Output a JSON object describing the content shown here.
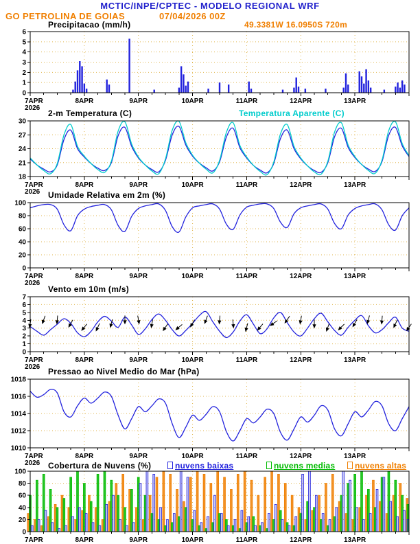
{
  "header": {
    "title": "MCTIC/INPE/CPTEC - MODELO REGIONAL WRF",
    "station": "GO PETROLINA DE GOIAS",
    "run": "07/04/2026 00Z",
    "location": "49.3381W 16.0950S 720m"
  },
  "colors": {
    "blue": "#2222dd",
    "cyan": "#00cccc",
    "green": "#00bb00",
    "orange": "#f07f00",
    "grid": "#e0b64f",
    "text_blue": "#2222cc",
    "text_orange": "#f07f00"
  },
  "x_axis": {
    "range_hours": [
      0,
      168
    ],
    "minor_tick_hours": 6,
    "ticks": [
      {
        "h": 0,
        "label": "7APR",
        "sub": "2026"
      },
      {
        "h": 24,
        "label": "8APR"
      },
      {
        "h": 48,
        "label": "9APR"
      },
      {
        "h": 72,
        "label": "10APR"
      },
      {
        "h": 96,
        "label": "11APR"
      },
      {
        "h": 120,
        "label": "12APR"
      },
      {
        "h": 144,
        "label": "13APR"
      }
    ]
  },
  "chart_data": [
    {
      "id": "precip",
      "type": "bar",
      "title": "Precipitacao (mm/h)",
      "ylim": [
        0,
        6
      ],
      "yticks": [
        0,
        1,
        2,
        3,
        4,
        5,
        6
      ],
      "bars": [
        [
          19,
          0.3
        ],
        [
          20,
          1.1
        ],
        [
          21,
          2.2
        ],
        [
          22,
          3.1
        ],
        [
          23,
          2.6
        ],
        [
          24,
          0.9
        ],
        [
          25,
          0.4
        ],
        [
          34,
          1.3
        ],
        [
          35,
          0.8
        ],
        [
          44,
          5.3
        ],
        [
          55,
          0.3
        ],
        [
          66,
          0.5
        ],
        [
          67,
          2.6
        ],
        [
          68,
          1.8
        ],
        [
          69,
          0.7
        ],
        [
          70,
          1.1
        ],
        [
          79,
          0.4
        ],
        [
          84,
          1.0
        ],
        [
          88,
          0.8
        ],
        [
          97,
          1.1
        ],
        [
          98,
          0.4
        ],
        [
          112,
          0.3
        ],
        [
          117,
          0.5
        ],
        [
          118,
          1.5
        ],
        [
          119,
          0.6
        ],
        [
          122,
          0.4
        ],
        [
          131,
          0.4
        ],
        [
          139,
          0.5
        ],
        [
          140,
          1.9
        ],
        [
          141,
          0.8
        ],
        [
          146,
          2.1
        ],
        [
          147,
          1.6
        ],
        [
          148,
          0.9
        ],
        [
          149,
          2.3
        ],
        [
          150,
          1.2
        ],
        [
          151,
          0.5
        ],
        [
          157,
          0.3
        ],
        [
          162,
          0.6
        ],
        [
          163,
          1.0
        ],
        [
          164,
          0.5
        ],
        [
          165,
          1.2
        ],
        [
          166,
          0.8
        ]
      ]
    },
    {
      "id": "temp",
      "type": "line",
      "title": "2-m Temperatura (C)",
      "ylim": [
        18,
        30
      ],
      "yticks": [
        18,
        21,
        24,
        27,
        30
      ],
      "x_step_hours": 3,
      "series": [
        {
          "name": "2-m Temperatura (C)",
          "color": "#2222dd",
          "values": [
            21.8,
            20.5,
            19.6,
            19.0,
            20.5,
            26.0,
            28.0,
            24.0,
            22.2,
            20.8,
            19.8,
            19.3,
            21.0,
            26.8,
            28.6,
            24.5,
            22.0,
            20.5,
            19.5,
            19.0,
            21.5,
            27.0,
            28.8,
            24.8,
            22.4,
            20.9,
            19.9,
            19.2,
            21.2,
            26.5,
            28.4,
            24.2,
            22.0,
            20.4,
            19.4,
            18.8,
            20.8,
            26.2,
            28.0,
            24.0,
            21.8,
            20.3,
            19.3,
            18.9,
            21.0,
            26.6,
            28.4,
            24.3,
            22.1,
            20.6,
            19.6,
            19.1,
            21.2,
            26.9,
            28.6,
            24.6,
            22.3
          ]
        },
        {
          "name": "Temperatura Aparente (C)",
          "color": "#00cccc",
          "values": [
            22.0,
            20.5,
            19.3,
            18.6,
            20.8,
            27.0,
            29.2,
            24.5,
            22.4,
            20.8,
            19.5,
            18.9,
            21.3,
            27.8,
            29.8,
            25.0,
            22.2,
            20.5,
            19.2,
            18.6,
            21.8,
            28.0,
            29.9,
            25.3,
            22.6,
            20.9,
            19.6,
            18.8,
            21.5,
            27.5,
            29.6,
            24.7,
            22.2,
            20.4,
            19.1,
            18.4,
            21.1,
            27.2,
            29.2,
            24.5,
            22.0,
            20.3,
            19.0,
            18.5,
            21.3,
            27.6,
            29.6,
            24.8,
            22.3,
            20.6,
            19.3,
            18.7,
            21.5,
            27.9,
            29.8,
            25.1,
            22.5
          ]
        }
      ]
    },
    {
      "id": "rh",
      "type": "line",
      "title": "Umidade Relativa em 2m (%)",
      "ylim": [
        0,
        100
      ],
      "yticks": [
        0,
        20,
        40,
        60,
        80,
        100
      ],
      "x_step_hours": 3,
      "series": [
        {
          "name": "Umidade Relativa em 2m (%)",
          "color": "#2222dd",
          "values": [
            92,
            95,
            97,
            97,
            90,
            66,
            57,
            80,
            90,
            94,
            96,
            97,
            89,
            65,
            56,
            79,
            91,
            95,
            97,
            98,
            88,
            63,
            55,
            78,
            92,
            95,
            97,
            98,
            90,
            67,
            59,
            81,
            93,
            96,
            98,
            98,
            91,
            70,
            62,
            83,
            92,
            95,
            97,
            98,
            90,
            68,
            60,
            81,
            91,
            95,
            97,
            98,
            89,
            66,
            58,
            80,
            92
          ]
        }
      ]
    },
    {
      "id": "wind",
      "type": "line",
      "title": "Vento em 10m (m/s)",
      "ylim": [
        0,
        7
      ],
      "yticks": [
        0,
        1,
        2,
        3,
        4,
        5,
        6,
        7
      ],
      "x_step_hours": 3,
      "series": [
        {
          "name": "Vento em 10m (m/s)",
          "color": "#2222dd",
          "values": [
            3.2,
            2.6,
            2.1,
            2.8,
            3.5,
            4.2,
            3.6,
            2.4,
            1.9,
            2.6,
            3.8,
            4.5,
            3.9,
            3.1,
            4.4,
            3.4,
            2.2,
            2.9,
            4.1,
            4.8,
            4.0,
            2.8,
            2.0,
            2.7,
            3.6,
            4.6,
            5.1,
            3.8,
            2.6,
            1.8,
            2.5,
            3.9,
            4.7,
            3.5,
            2.3,
            2.9,
            4.3,
            5.0,
            3.7,
            2.5,
            2.0,
            3.0,
            4.2,
            4.9,
            3.8,
            2.7,
            2.1,
            3.1,
            4.0,
            4.6,
            3.3,
            2.4,
            2.8,
            3.7,
            4.4,
            3.0,
            2.6
          ]
        }
      ],
      "barbs": {
        "step_hours": 6,
        "dirs_deg": [
          100,
          110,
          95,
          120,
          130,
          115,
          105,
          90,
          80,
          100,
          125,
          140,
          120,
          110,
          95,
          85,
          105,
          130,
          145,
          125,
          100,
          90,
          110,
          135,
          120,
          105,
          95,
          115,
          125
        ]
      }
    },
    {
      "id": "pres",
      "type": "line",
      "title": "Pressao ao Nivel Medio do Mar (hPa)",
      "ylim": [
        1010,
        1018
      ],
      "yticks": [
        1010,
        1012,
        1014,
        1016,
        1018
      ],
      "x_step_hours": 3,
      "series": [
        {
          "name": "Pressao ao Nivel Medio do Mar (hPa)",
          "color": "#2222dd",
          "values": [
            1016.6,
            1015.9,
            1016.2,
            1016.8,
            1016.4,
            1014.2,
            1013.6,
            1014.9,
            1015.8,
            1015.2,
            1015.8,
            1016.5,
            1016.0,
            1013.8,
            1012.2,
            1013.4,
            1014.8,
            1014.2,
            1014.9,
            1015.7,
            1015.2,
            1012.8,
            1011.2,
            1012.4,
            1013.8,
            1013.2,
            1013.9,
            1014.8,
            1014.2,
            1011.9,
            1010.8,
            1012.0,
            1013.4,
            1012.9,
            1013.6,
            1014.5,
            1014.0,
            1011.8,
            1010.9,
            1012.2,
            1013.6,
            1013.0,
            1013.8,
            1014.9,
            1014.4,
            1012.2,
            1011.4,
            1012.8,
            1014.2,
            1013.6,
            1014.4,
            1015.4,
            1014.9,
            1012.8,
            1012.0,
            1013.4,
            1014.8
          ]
        }
      ]
    },
    {
      "id": "clouds",
      "type": "bars3",
      "title": "Cobertura de Nuvens (%)",
      "ylim": [
        0,
        100
      ],
      "yticks": [
        0,
        20,
        40,
        60,
        80,
        100
      ],
      "x_step_hours": 3,
      "series": [
        {
          "name": "nuvens baixas",
          "color": "#2222dd",
          "values": [
            10,
            20,
            35,
            15,
            5,
            10,
            25,
            40,
            30,
            15,
            10,
            45,
            60,
            20,
            10,
            15,
            80,
            100,
            95,
            40,
            20,
            30,
            100,
            90,
            35,
            15,
            25,
            60,
            30,
            10,
            20,
            35,
            25,
            10,
            15,
            30,
            45,
            20,
            10,
            25,
            95,
            100,
            60,
            30,
            20,
            40,
            100,
            85,
            40,
            20,
            30,
            70,
            90,
            50,
            25,
            35,
            20
          ]
        },
        {
          "name": "nuvens medias",
          "color": "#00bb00",
          "values": [
            60,
            85,
            95,
            70,
            40,
            55,
            90,
            100,
            80,
            50,
            95,
            100,
            85,
            60,
            40,
            70,
            90,
            60,
            30,
            20,
            10,
            15,
            25,
            40,
            20,
            10,
            5,
            15,
            30,
            20,
            10,
            5,
            15,
            25,
            10,
            5,
            20,
            35,
            15,
            10,
            30,
            50,
            40,
            20,
            10,
            25,
            60,
            80,
            95,
            100,
            70,
            40,
            90,
            100,
            85,
            60,
            45
          ]
        },
        {
          "name": "nuvens altas",
          "color": "#f07f00",
          "values": [
            30,
            20,
            10,
            25,
            45,
            60,
            40,
            20,
            35,
            60,
            40,
            20,
            50,
            80,
            95,
            70,
            40,
            20,
            60,
            90,
            100,
            95,
            70,
            50,
            90,
            100,
            95,
            80,
            100,
            90,
            70,
            95,
            100,
            85,
            60,
            90,
            100,
            95,
            80,
            60,
            40,
            20,
            35,
            60,
            80,
            95,
            50,
            30,
            20,
            40,
            60,
            85,
            50,
            30,
            60,
            80,
            55
          ]
        }
      ]
    }
  ]
}
